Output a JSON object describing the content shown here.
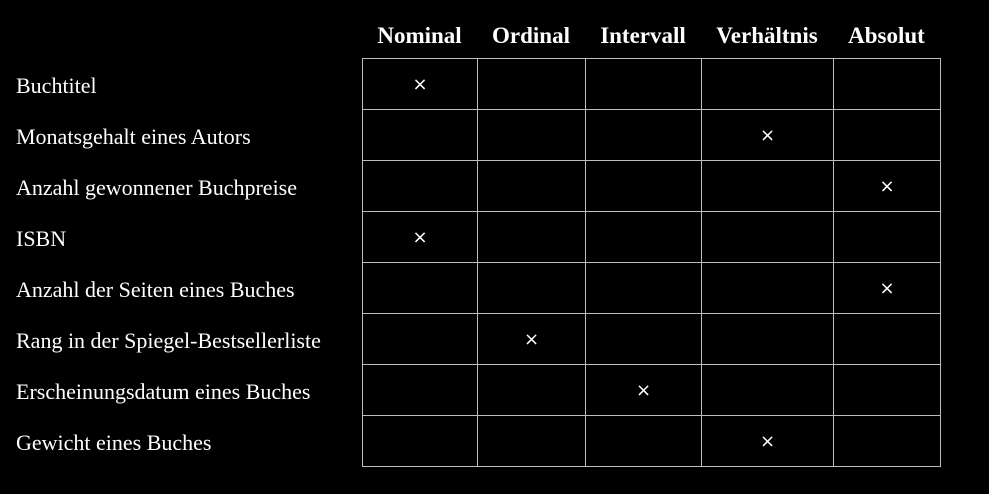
{
  "columns": [
    "Nominal",
    "Ordinal",
    "Intervall",
    "Verhältnis",
    "Absolut"
  ],
  "mark_symbol": "×",
  "rows": [
    {
      "label": "Buchtitel",
      "scale": "Nominal"
    },
    {
      "label": "Monatsgehalt eines Autors",
      "scale": "Verhältnis"
    },
    {
      "label": "Anzahl gewonnener Buchpreise",
      "scale": "Absolut"
    },
    {
      "label": "ISBN",
      "scale": "Nominal"
    },
    {
      "label": "Anzahl der Seiten eines Buches",
      "scale": "Absolut"
    },
    {
      "label": "Rang in der Spiegel-Bestsellerliste",
      "scale": "Ordinal"
    },
    {
      "label": "Erscheinungsdatum eines Buches",
      "scale": "Intervall"
    },
    {
      "label": "Gewicht eines Buches",
      "scale": "Verhältnis"
    }
  ],
  "colors": {
    "background": "#000000",
    "text": "#ffffff",
    "grid_line": "#bdbdbd"
  }
}
